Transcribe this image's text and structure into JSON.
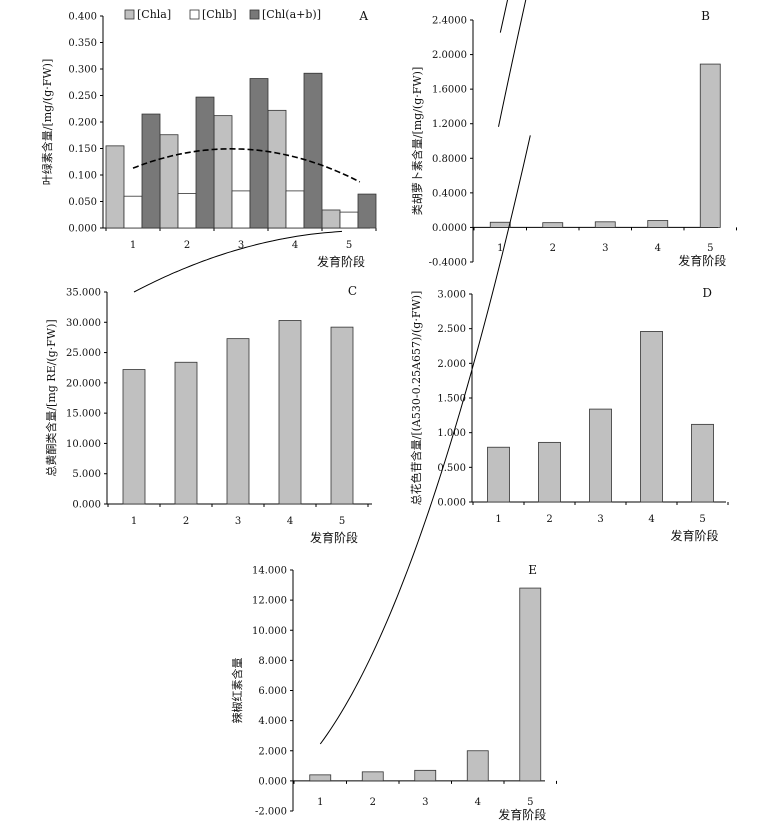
{
  "chart_data": [
    {
      "id": "A",
      "panel_label": "A",
      "type": "bar",
      "xlabel": "发育阶段",
      "ylabel": "叶绿素含量/[mg/(g·FW)]",
      "ylim": [
        0,
        0.4
      ],
      "yticks": [
        "0.000",
        "0.050",
        "0.100",
        "0.150",
        "0.200",
        "0.250",
        "0.300",
        "0.350",
        "0.400"
      ],
      "categories": [
        "1",
        "2",
        "3",
        "4",
        "5"
      ],
      "series": [
        {
          "name": "[Chla]",
          "values": [
            0.155,
            0.176,
            0.212,
            0.222,
            0.034
          ],
          "color": "#c0c0c0",
          "trend": {
            "coef": [
              -0.0335,
              0.255,
              0.2238,
              0.0003
            ],
            "style": "solid",
            "from": 1,
            "to": 5.2
          }
        },
        {
          "name": "[Chlb]",
          "values": [
            0.06,
            0.065,
            0.07,
            0.07,
            0.03
          ],
          "color": "#ffffff",
          "trend": {
            "coef": [
              -0.011,
              0.062,
              0.062,
              0
            ],
            "style": "dashed",
            "from": 1,
            "to": 5.2
          }
        },
        {
          "name": "[Chl(a+b)]",
          "values": [
            0.215,
            0.247,
            0.282,
            0.292,
            0.064
          ],
          "color": "#787878",
          "trend": {
            "coef": [
              -0.046,
              0.28,
              0.3026,
              0.0014
            ],
            "style": "dashdot",
            "from": 1,
            "to": 5.2
          }
        }
      ],
      "legend": [
        "[Chla]",
        "[Chlb]",
        "[Chl(a+b)]"
      ]
    },
    {
      "id": "B",
      "panel_label": "B",
      "type": "bar",
      "xlabel": "发育阶段",
      "ylabel": "类胡萝卜素含量/[mg/(g·FW)]",
      "ylim": [
        -0.4,
        2.4
      ],
      "yticks": [
        "-0.4000",
        "0.0000",
        "0.4000",
        "0.8000",
        "1.2000",
        "1.6000",
        "2.0000",
        "2.4000"
      ],
      "categories": [
        "1",
        "2",
        "3",
        "4",
        "5"
      ],
      "series": [
        {
          "name": "",
          "values": [
            0.06,
            0.055,
            0.065,
            0.08,
            1.89
          ],
          "color": "#c0c0c0",
          "trend": {
            "coef": [
              0.254,
              2.2,
              -0.2,
              0
            ],
            "style": "solid",
            "from": 1,
            "to": 5
          }
        }
      ]
    },
    {
      "id": "C",
      "panel_label": "C",
      "type": "bar",
      "xlabel": "发育阶段",
      "ylabel": "总黄酮类含量/[mg RE/(g·FW)]",
      "ylim": [
        0,
        35
      ],
      "yticks": [
        "0.000",
        "5.000",
        "10.000",
        "15.000",
        "20.000",
        "25.000",
        "30.000",
        "35.000"
      ],
      "categories": [
        "1",
        "2",
        "3",
        "4",
        "5"
      ],
      "series": [
        {
          "name": "",
          "values": [
            22.2,
            23.4,
            27.3,
            30.3,
            29.2
          ],
          "color": "#c0c0c0",
          "trend": {
            "coef": [
              -0.5,
              5.5,
              30.0,
              0
            ],
            "style": "solid",
            "from": 1,
            "to": 5
          }
        }
      ]
    },
    {
      "id": "D",
      "panel_label": "D",
      "type": "bar",
      "xlabel": "发育阶段",
      "ylabel": "总花色苷含量/[(A530-0.25A657)/(g·FW)]",
      "ylim": [
        0,
        3
      ],
      "yticks": [
        "0.000",
        "0.500",
        "1.000",
        "1.500",
        "2.000",
        "2.500",
        "3.000"
      ],
      "categories": [
        "1",
        "2",
        "3",
        "4",
        "5"
      ],
      "series": [
        {
          "name": "",
          "values": [
            0.79,
            0.86,
            1.34,
            2.46,
            1.12
          ],
          "color": "#c0c0c0",
          "trend": {
            "coef": [
              -0.188,
              3.9,
              1.7,
              0
            ],
            "style": "solid",
            "from": 1,
            "to": 5
          }
        }
      ]
    },
    {
      "id": "E",
      "panel_label": "E",
      "type": "bar",
      "xlabel": "发育阶段",
      "ylabel": "辣椒红素含量",
      "ylim": [
        -2,
        14
      ],
      "yticks": [
        "-2.000",
        "0.000",
        "2.000",
        "4.000",
        "6.000",
        "8.000",
        "10.000",
        "12.000",
        "14.000"
      ],
      "categories": [
        "1",
        "2",
        "3",
        "4",
        "5"
      ],
      "series": [
        {
          "name": "",
          "values": [
            0.4,
            0.6,
            0.7,
            2.0,
            12.8
          ],
          "color": "#c0c0c0",
          "trend": {
            "coef": [
              1.35,
              2.0,
              -0.9,
              0
            ],
            "style": "solid",
            "from": 1,
            "to": 5
          }
        }
      ]
    }
  ]
}
